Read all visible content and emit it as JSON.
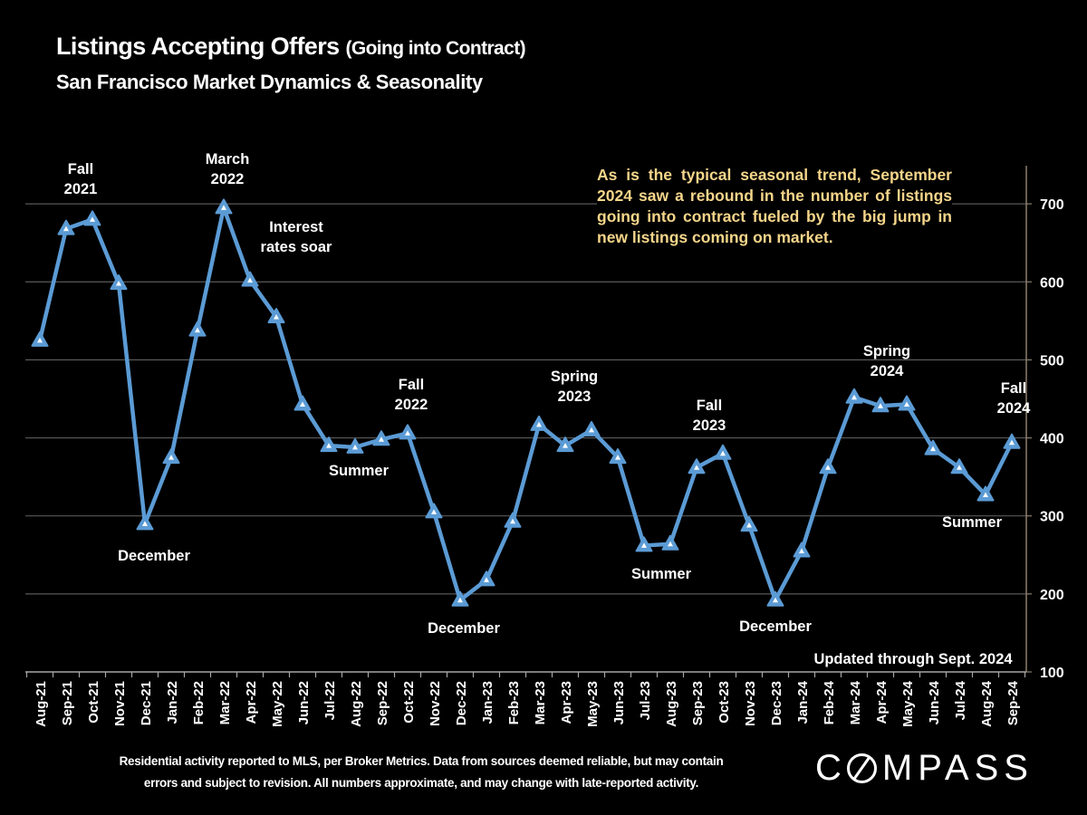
{
  "header": {
    "title_main": "Listings Accepting Offers",
    "title_paren": "(Going into Contract)",
    "subtitle": "San Francisco Market Dynamics & Seasonality"
  },
  "callout": "As is the typical seasonal trend, September 2024 saw a rebound in the number of listings going into contract fueled by the big jump in new listings coming on market.",
  "footer": {
    "line1": "Residential activity reported to MLS, per Broker Metrics. Data from sources deemed reliable, but may contain",
    "line2": "errors and subject to revision. All numbers approximate, and may change with late-reported activity."
  },
  "logo": {
    "pre": "C",
    "post": "MPASS"
  },
  "colors": {
    "line": "#5b9bd5",
    "callout": "#f5d58a",
    "grid": "#595959",
    "axis": "#8a7f6e"
  },
  "chart_data": {
    "type": "line",
    "title": "Listings Accepting Offers (Going into Contract)",
    "subtitle": "San Francisco Market Dynamics & Seasonality",
    "xlabel": "",
    "ylabel": "",
    "ylim": [
      100,
      750
    ],
    "yticks": [
      100,
      200,
      300,
      400,
      500,
      600,
      700
    ],
    "y_axis_side": "right",
    "grid": true,
    "marker": "triangle",
    "categories": [
      "Aug-21",
      "Sep-21",
      "Oct-21",
      "Nov-21",
      "Dec-21",
      "Jan-22",
      "Feb-22",
      "Mar-22",
      "Apr-22",
      "May-22",
      "Jun-22",
      "Jul-22",
      "Aug-22",
      "Sep-22",
      "Oct-22",
      "Nov-22",
      "Dec-22",
      "Jan-23",
      "Feb-23",
      "Mar-23",
      "Apr-23",
      "May-23",
      "Jun-23",
      "Jul-23",
      "Aug-23",
      "Sep-23",
      "Oct-23",
      "Nov-23",
      "Dec-23",
      "Jan-24",
      "Feb-24",
      "Mar-24",
      "Apr-24",
      "May-24",
      "Jun-24",
      "Jul-24",
      "Aug-24",
      "Sep-24"
    ],
    "series": [
      {
        "name": "Listings Accepting Offers",
        "values": [
          525,
          668,
          680,
          598,
          290,
          375,
          538,
          695,
          602,
          555,
          443,
          390,
          388,
          398,
          406,
          305,
          192,
          218,
          293,
          417,
          390,
          410,
          375,
          262,
          264,
          362,
          380,
          288,
          192,
          255,
          362,
          452,
          441,
          443,
          386,
          362,
          327,
          394
        ]
      }
    ],
    "annotations": [
      {
        "lines": [
          "Fall",
          "2021"
        ],
        "at": "Oct-21",
        "position": "above"
      },
      {
        "lines": [
          "March",
          "2022"
        ],
        "at": "Mar-22",
        "position": "above"
      },
      {
        "lines": [
          "Interest",
          "rates soar"
        ],
        "at": "May-22",
        "position": "above"
      },
      {
        "lines": [
          "December"
        ],
        "at": "Dec-21",
        "position": "below"
      },
      {
        "lines": [
          "Summer"
        ],
        "at": "Aug-22",
        "position": "below"
      },
      {
        "lines": [
          "Fall",
          "2022"
        ],
        "at": "Oct-22",
        "position": "above"
      },
      {
        "lines": [
          "December"
        ],
        "at": "Dec-22",
        "position": "below"
      },
      {
        "lines": [
          "Spring",
          "2023"
        ],
        "at": "Apr-23",
        "position": "above"
      },
      {
        "lines": [
          "Summer"
        ],
        "at": "Jul-23",
        "position": "below"
      },
      {
        "lines": [
          "Fall",
          "2023"
        ],
        "at": "Oct-23",
        "position": "above"
      },
      {
        "lines": [
          "December"
        ],
        "at": "Dec-23",
        "position": "below"
      },
      {
        "lines": [
          "Spring",
          "2024"
        ],
        "at": "Apr-24",
        "position": "above"
      },
      {
        "lines": [
          "Summer"
        ],
        "at": "Jul-24",
        "position": "below"
      },
      {
        "lines": [
          "Fall",
          "2024"
        ],
        "at": "Sep-24",
        "position": "above"
      },
      {
        "lines": [
          "Updated through Sept. 2024"
        ],
        "at": "bottom-right",
        "position": "inside"
      }
    ]
  }
}
